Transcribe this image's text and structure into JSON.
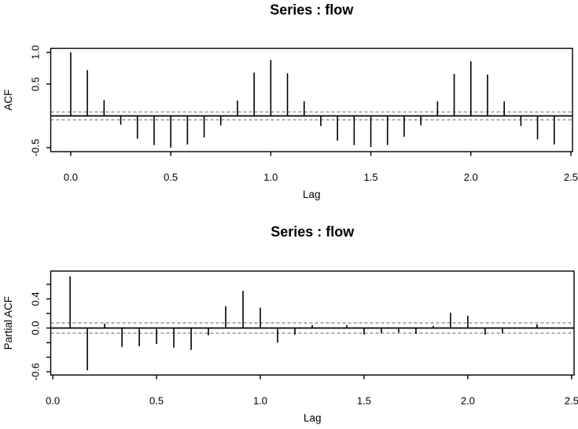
{
  "page": {
    "background": "#ffffff",
    "foreground": "#000000",
    "conf_band_color": "#949494"
  },
  "chart_data": [
    {
      "type": "bar",
      "chart_kind": "autocorrelation-stem-plot",
      "title": "Series : flow",
      "xlabel": "Lag",
      "ylabel": "ACF",
      "x": [
        0.0,
        0.0833,
        0.1667,
        0.25,
        0.3333,
        0.4167,
        0.5,
        0.5833,
        0.6667,
        0.75,
        0.8333,
        0.9167,
        1.0,
        1.0833,
        1.1667,
        1.25,
        1.3333,
        1.4167,
        1.5,
        1.5833,
        1.6667,
        1.75,
        1.8333,
        1.9167,
        2.0,
        2.0833,
        2.1667,
        2.25,
        2.3333,
        2.4167
      ],
      "values": [
        1.0,
        0.72,
        0.25,
        -0.14,
        -0.36,
        -0.46,
        -0.5,
        -0.45,
        -0.34,
        -0.15,
        0.24,
        0.68,
        0.88,
        0.67,
        0.23,
        -0.16,
        -0.39,
        -0.46,
        -0.49,
        -0.46,
        -0.33,
        -0.15,
        0.23,
        0.66,
        0.86,
        0.65,
        0.23,
        -0.16,
        -0.37,
        -0.45
      ],
      "conf_band": 0.062,
      "conf_band_style": "dashed",
      "zero_line": true,
      "grid": false,
      "xlim": [
        -0.1,
        2.508
      ],
      "ylim": [
        -0.563,
        1.063
      ],
      "x_ticks": [
        0.0,
        0.5,
        1.0,
        1.5,
        2.0,
        2.5
      ],
      "x_tick_labels": [
        "0.0",
        "0.5",
        "1.0",
        "1.5",
        "2.0",
        "2.5"
      ],
      "y_ticks": [
        1.0,
        0.5,
        -0.5
      ],
      "y_tick_labels": [
        "1.0",
        "0.5",
        "-0.5"
      ]
    },
    {
      "type": "bar",
      "chart_kind": "partial-autocorrelation-stem-plot",
      "title": "Series : flow",
      "xlabel": "Lag",
      "ylabel": "Partial ACF",
      "x": [
        0.0833,
        0.1667,
        0.25,
        0.3333,
        0.4167,
        0.5,
        0.5833,
        0.6667,
        0.75,
        0.8333,
        0.9167,
        1.0,
        1.0833,
        1.1667,
        1.25,
        1.3333,
        1.4167,
        1.5,
        1.5833,
        1.6667,
        1.75,
        1.8333,
        1.9167,
        2.0,
        2.0833,
        2.1667,
        2.25,
        2.3333,
        2.4167
      ],
      "values": [
        0.71,
        -0.58,
        0.06,
        -0.26,
        -0.25,
        -0.22,
        -0.27,
        -0.3,
        -0.1,
        0.3,
        0.51,
        0.28,
        -0.2,
        -0.09,
        0.04,
        0.0,
        0.04,
        -0.09,
        -0.07,
        -0.06,
        -0.08,
        0.03,
        0.21,
        0.17,
        -0.09,
        -0.07,
        0.0,
        0.05,
        0.0
      ],
      "conf_band": 0.07,
      "conf_band_style": "dashed",
      "zero_line": true,
      "grid": false,
      "xlim": [
        -0.01,
        2.512
      ],
      "ylim": [
        -0.645,
        0.782
      ],
      "x_ticks": [
        0.0,
        0.5,
        1.0,
        1.5,
        2.0,
        2.5
      ],
      "x_tick_labels": [
        "0.0",
        "0.5",
        "1.0",
        "1.5",
        "2.0",
        "2.5"
      ],
      "y_ticks": [
        0.6,
        0.4,
        0.2,
        0.0,
        -0.2,
        -0.4,
        -0.6
      ],
      "y_tick_labels": [
        "",
        "0.4",
        "",
        "0.0",
        "",
        "",
        "-0.6"
      ]
    }
  ]
}
